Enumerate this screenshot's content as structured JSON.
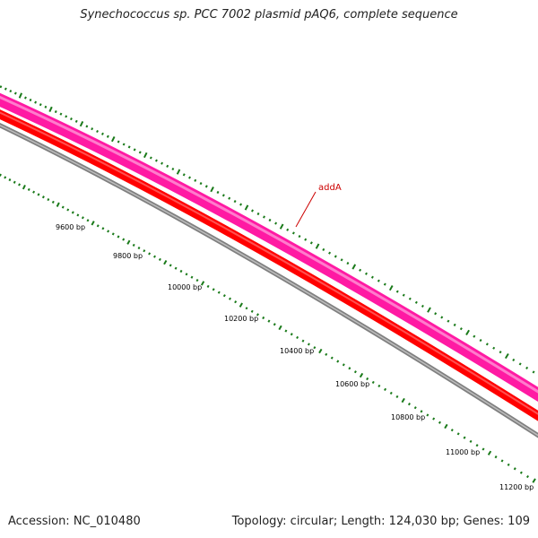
{
  "title": "Synechococcus sp. PCC 7002 plasmid pAQ6, complete sequence",
  "gene_label": "addA",
  "scale_labels": [
    "9600 bp",
    "9800 bp",
    "10000 bp",
    "10200 bp",
    "10400 bp",
    "10600 bp",
    "10800 bp",
    "11000 bp",
    "11200 bp"
  ],
  "footer": {
    "accession": "Accession: NC_010480",
    "summary": "Topology: circular; Length: 124,030 bp; Genes: 109"
  },
  "colors": {
    "background": "#ffffff",
    "title_text": "#222222",
    "backbone": "#808080",
    "cds_band": "#ff0000",
    "gene_band": "#ff1aa3",
    "tick_marks": "#1a7a1a",
    "gene_label": "#cc0000",
    "scale_text": "#000000"
  }
}
